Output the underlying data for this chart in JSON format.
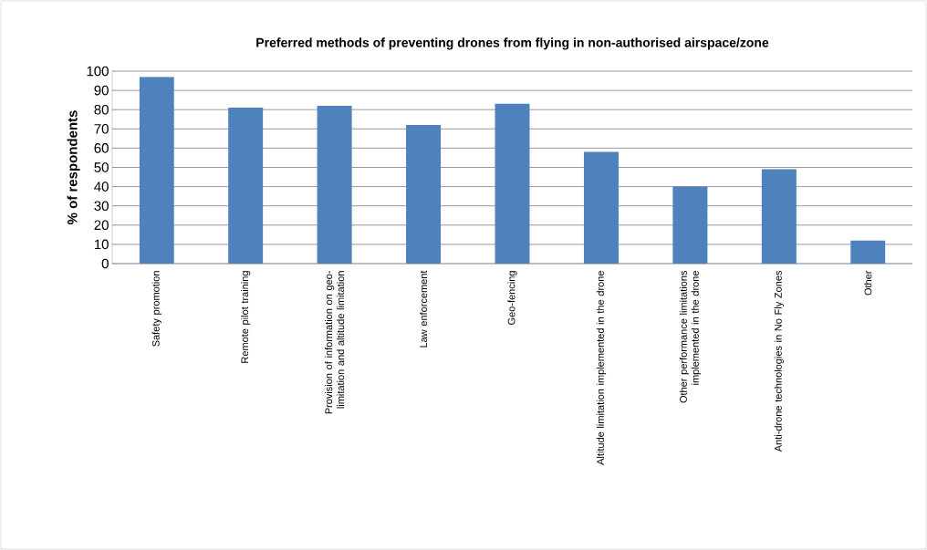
{
  "chart_data": {
    "type": "bar",
    "title": "Preferred methods of preventing drones from flying in non-authorised airspace/zone",
    "ylabel": "% of respondents",
    "categories": [
      "Safety promotion",
      "Remote pilot training",
      "Provision of information on geo-limitation and altitude limitation",
      "Law enforcement",
      "Geo-fencing",
      "Altitude limitation implemented in the drone",
      "Other performance limitations implemented in the drone",
      "Anti-drone technologies in No Fly Zones",
      "Other"
    ],
    "values": [
      97,
      81,
      82,
      72,
      83,
      58,
      40,
      49,
      12
    ],
    "color": "#4f81bd",
    "ylim": [
      0,
      100
    ],
    "yticks": [
      0,
      10,
      20,
      30,
      40,
      50,
      60,
      70,
      80,
      90,
      100
    ],
    "grid": "y"
  }
}
